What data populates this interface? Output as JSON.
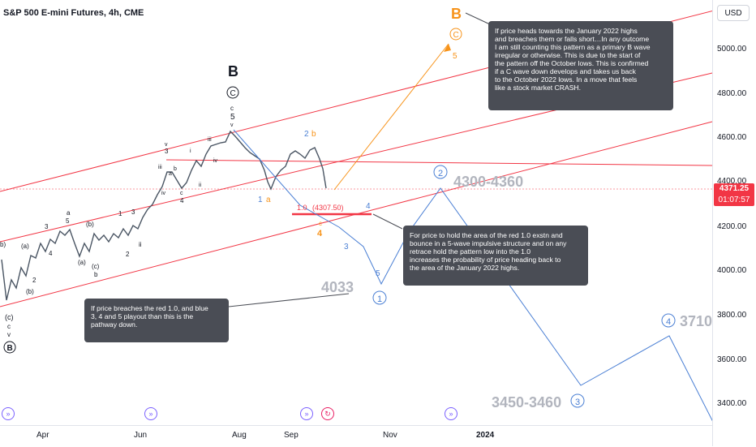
{
  "symbol_title": "S&P 500 E-mini Futures, 4h, CME",
  "currency": "USD",
  "price_labels": [
    "5000.00",
    "4800.00",
    "4600.00",
    "4400.00",
    "4200.00",
    "4000.00",
    "3800.00",
    "3600.00",
    "3400.00"
  ],
  "current_price": "4371.25",
  "countdown": "01:07:57",
  "time_labels": [
    "Apr",
    "Jun",
    "Aug",
    "Sep",
    "Nov",
    "2024"
  ],
  "wave_labels": {
    "big_b_black": "B",
    "circle_c_black": "C",
    "c5_top": "c",
    "c5_num": "5",
    "v_top": "v",
    "big_b_orange": "B",
    "circle_c_orange": "C",
    "five_orange": "5",
    "two_blue": "2",
    "b_orange": "b",
    "one_blue": "1",
    "a_orange": "a",
    "ext_label": "1.0",
    "ext_value": "(4307.50)",
    "c_orange": "c",
    "four_orange": "4",
    "four_blue": "4",
    "three_blue": "3",
    "five_blue": "5",
    "c1_circle": "1",
    "c2_circle": "2",
    "c3_circle": "3",
    "c4_circle": "4",
    "target_4300": "4300-4360",
    "target_4033": "4033",
    "target_3450": "3450-3460",
    "target_3710": "3710",
    "bottom_paren_c": "(c)",
    "bottom_c": "c",
    "bottom_v": "v",
    "bottom_circle_b": "B",
    "paren_a": "(a)",
    "paren_b": "(b)",
    "paren_b2": "(b)",
    "paren_a2": "(a)",
    "paren_c": "(c)",
    "small_b": "b",
    "small_a": "a",
    "small_3": "3",
    "small_5": "5",
    "small_4": "4",
    "small_1": "1",
    "small_2": "2",
    "small_1b": "1",
    "small_2b": "2",
    "small_3b": "3",
    "small_v": "v",
    "small_iii": "iii",
    "small_a2": "a",
    "small_b2": "b",
    "small_iv": "iv",
    "small_c": "c",
    "small_4b": "4",
    "small_i": "i",
    "small_ii": "ii",
    "small_iii2": "iii",
    "small_iv2": "iv",
    "small_i2": "i",
    "small_ii2": "ii",
    "small_v2": "v",
    "small_ii3": "ii",
    "small_1c": "1",
    "small_ii4": "ii",
    "left_b": "b)",
    "left_2": "2",
    "left_a": "(a)"
  },
  "notes": {
    "top_right": "If price heads towards the January 2022 highs\nand breaches them or falls short…In any outcome\nI am still counting this pattern as a primary B wave\nirregular or otherwise.  This is due to the start of\nthe pattern off the October lows.  This is confirmed\nif a C wave down develops and takes us back\nto the October 2022 lows. In a move that feels\nlike a stock market CRASH.",
    "middle_right": "For price to hold the area of the red 1.0 exstn and\nbounce in a 5-wave impulsive structure and on any\nretrace hold the pattern low into the 1.0\nincreases the probability of price heading back to\nthe area of the January 2022 highs.",
    "bottom_left": "If price breaches the red 1.0, and blue\n3, 4 and 5 playout than this is the\npathway down."
  },
  "colors": {
    "channel_red": "#f23645",
    "blue_path": "#4a7fd4",
    "orange_path": "#f7931a",
    "candle_up": "#089981",
    "candle_down": "#f23645",
    "note_bg": "#4a4d55"
  }
}
